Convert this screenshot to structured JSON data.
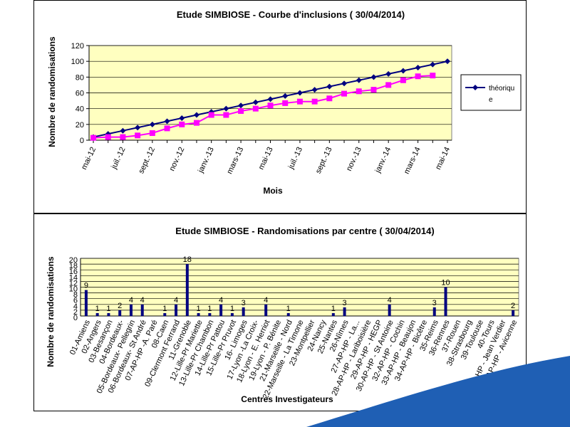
{
  "colors": {
    "plot_bg": "#ffffc0",
    "grid": "#000000",
    "theorique": "#000080",
    "inclusions": "#ff00ff",
    "bar": "#000080",
    "deco_blue": "#1f5fb4"
  },
  "chart_data": [
    {
      "type": "line",
      "title": "Etude SIMBIOSE - Courbe d'inclusions ( 30/04/2014)",
      "xlabel": "Mois",
      "ylabel": "Nombre de randomisations",
      "ylim": [
        0,
        120
      ],
      "yticks": [
        0,
        20,
        40,
        60,
        80,
        100,
        120
      ],
      "grid": true,
      "legend_placement": "right",
      "x": [
        "mai-12",
        "juin-12",
        "juil.-12",
        "août-12",
        "sept.-12",
        "oct.-12",
        "nov.-12",
        "déc.-12",
        "janv.-13",
        "févr.-13",
        "mars-13",
        "avr.-13",
        "mai-13",
        "juin-13",
        "juil.-13",
        "août-13",
        "sept.-13",
        "oct.-13",
        "nov.-13",
        "déc.-13",
        "janv.-14",
        "févr.-14",
        "mars-14",
        "avr.-14",
        "mai-14"
      ],
      "xtick_labels": [
        "mai-12",
        "juil.-12",
        "sept.-12",
        "nov.-12",
        "janv.-13",
        "mars-13",
        "mai-13",
        "juil.-13",
        "sept.-13",
        "nov.-13",
        "janv.-14",
        "mars-14",
        "mai-14"
      ],
      "xtick_index": [
        0,
        2,
        4,
        6,
        8,
        10,
        12,
        14,
        16,
        18,
        20,
        22,
        24
      ],
      "series": [
        {
          "name": "théorique",
          "legend_lines": [
            "théoriqu",
            "e"
          ],
          "marker": "diamond",
          "values": [
            4,
            8,
            12,
            16,
            20,
            24,
            28,
            32,
            36,
            40,
            44,
            48,
            52,
            56,
            60,
            64,
            68,
            72,
            76,
            80,
            84,
            88,
            92,
            96,
            100
          ]
        },
        {
          "name": "",
          "marker": "square",
          "values": [
            3,
            4,
            4,
            6,
            9,
            15,
            20,
            22,
            32,
            32,
            37,
            40,
            44,
            47,
            49,
            49,
            53,
            59,
            62,
            64,
            70,
            76,
            81,
            82,
            null
          ]
        }
      ]
    },
    {
      "type": "bar",
      "title": "Etude SIMBIOSE - Randomisations par centre ( 30/04/2014)",
      "xlabel": "Centres Investigateurs",
      "ylabel": "Nombre de randomisations",
      "ylim": [
        0,
        20
      ],
      "yticks": [
        0,
        2,
        4,
        6,
        8,
        10,
        12,
        14,
        16,
        18,
        20
      ],
      "grid": true,
      "categories": [
        "01-Amiens",
        "02-Angers",
        "03-Besançon",
        "04-Bordeaux-",
        "05-Bordeaux- Pellegrin",
        "06-Bordeaux- St André",
        "07-AP-HP -A. Paré",
        "08-Caen",
        "09-Clermont Ferrand",
        "11-Grenoble",
        "12-Lille-Pr Mariette",
        "13-Lille-Pr Chambon",
        "14-Lille-Pr Pattou",
        "15-Lille-Pr Pruvot",
        "16- Limoges",
        "17-Lyon -La Croix-",
        "18-Lyon - E. Herriot",
        "19-Lyon - P. Bénite",
        "21-Marseille - Nord",
        "22-Marseille - La Timone",
        "23-Montpellier",
        "24-Nancy",
        "25-Nantes",
        "26-Nîmes",
        "27-AP-HP - La...",
        "28-AP-HP - Lariboisière",
        "29-AP-HP - HEGP",
        "30-AP-HP - St Antoine",
        "32-AP-HP - Cochin",
        "33-AP-HP - Beaujon",
        "34-AP-HP - Bicêtre",
        "35-Reims",
        "36-Rennes",
        "37-Rouen",
        "38-Strasbourg",
        "39-Toulouse",
        "40-Tours",
        "41-AP-HP - Jean Verdier",
        "42-AP-HP - Avicenne"
      ],
      "values": [
        9,
        1,
        1,
        2,
        4,
        4,
        0,
        1,
        4,
        18,
        1,
        1,
        4,
        1,
        3,
        0,
        4,
        0,
        1,
        0,
        0,
        0,
        1,
        3,
        0,
        0,
        0,
        4,
        0,
        0,
        0,
        3,
        10,
        0,
        0,
        0,
        0,
        0,
        2
      ],
      "tick_label_index": [
        0,
        1,
        2,
        3,
        4,
        5,
        6,
        7,
        8,
        9,
        10,
        11,
        12,
        13,
        14,
        15,
        16,
        17,
        18,
        19,
        20,
        21,
        22,
        23,
        24,
        25,
        26,
        27,
        28,
        29,
        30,
        31,
        32,
        33,
        34,
        35,
        36,
        37,
        38
      ],
      "data_labels": [
        "9",
        "1",
        "1",
        "2",
        "4",
        "4",
        "",
        "1",
        "4",
        "18",
        "1",
        "1",
        "4",
        "1",
        "3",
        "",
        "4",
        "",
        "1",
        "",
        "",
        "",
        "1",
        "3",
        "",
        "",
        "",
        "4",
        "",
        "",
        "",
        "3",
        "10",
        "",
        "",
        "",
        "",
        "",
        "2"
      ]
    }
  ]
}
